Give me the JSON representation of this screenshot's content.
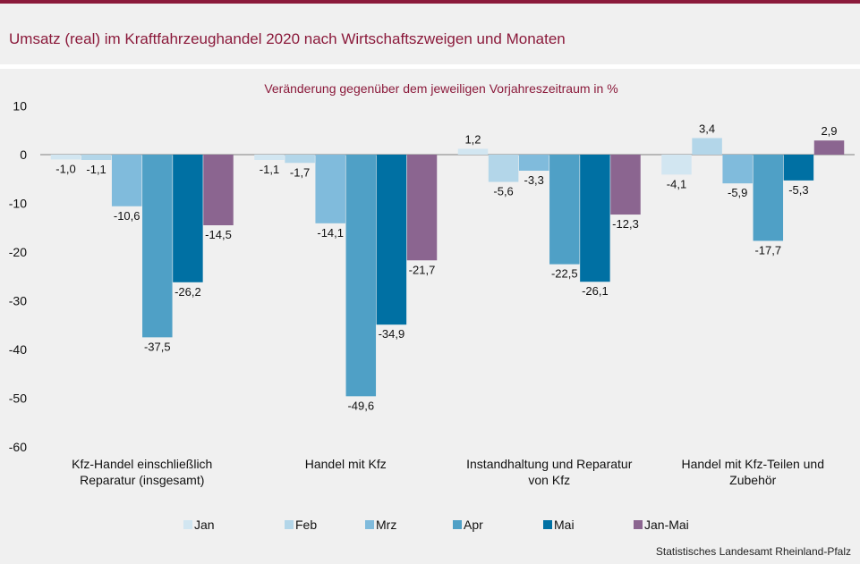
{
  "title": "Umsatz (real) im Kraftfahrzeughandel 2020 nach Wirtschaftszweigen und Monaten",
  "source": "Statistisches Landesamt Rheinland-Pfalz",
  "chart_data": {
    "type": "bar",
    "subtitle": "Veränderung  gegenüber  dem jeweiligen Vorjahreszeitraum  in %",
    "categories": [
      [
        "Kfz-Handel einschließlich",
        "Reparatur (insgesamt)"
      ],
      [
        "Handel mit Kfz"
      ],
      [
        "Instandhaltung und Reparatur",
        "von Kfz"
      ],
      [
        "Handel mit Kfz-Teilen und",
        "Zubehör"
      ]
    ],
    "series": [
      {
        "name": "Jan",
        "color": "#d2e6f1",
        "values": [
          -1.0,
          -1.1,
          1.2,
          -4.1
        ],
        "labels": [
          "-1,0",
          "-1,1",
          "1,2",
          "-4,1"
        ]
      },
      {
        "name": "Feb",
        "color": "#b3d6e9",
        "values": [
          -1.1,
          -1.7,
          -5.6,
          3.4
        ],
        "labels": [
          "-1,1",
          "-1,7",
          "-5,6",
          "3,4"
        ]
      },
      {
        "name": "Mrz",
        "color": "#80bbdc",
        "values": [
          -10.6,
          -14.1,
          -3.3,
          -5.9
        ],
        "labels": [
          "-10,6",
          "-14,1",
          "-3,3",
          "-5,9"
        ]
      },
      {
        "name": "Apr",
        "color": "#4fa0c6",
        "values": [
          -37.5,
          -49.6,
          -22.5,
          -17.7
        ],
        "labels": [
          "-37,5",
          "-49,6",
          "-22,5",
          "-17,7"
        ]
      },
      {
        "name": "Mai",
        "color": "#0070a3",
        "values": [
          -26.2,
          -34.9,
          -26.1,
          -5.3
        ],
        "labels": [
          "-26,2",
          "-34,9",
          "-26,1",
          "-5,3"
        ]
      },
      {
        "name": "Jan-Mai",
        "color": "#8b6590",
        "values": [
          -14.5,
          -21.7,
          -12.3,
          2.9
        ],
        "labels": [
          "-14,5",
          "-21,7",
          "-12,3",
          "2,9"
        ]
      }
    ],
    "yticks": [
      "10",
      "0",
      "-10",
      "-20",
      "-30",
      "-40",
      "-50",
      "-60"
    ],
    "ylim": [
      -60,
      10
    ],
    "grid": false,
    "legend": "bottom"
  }
}
